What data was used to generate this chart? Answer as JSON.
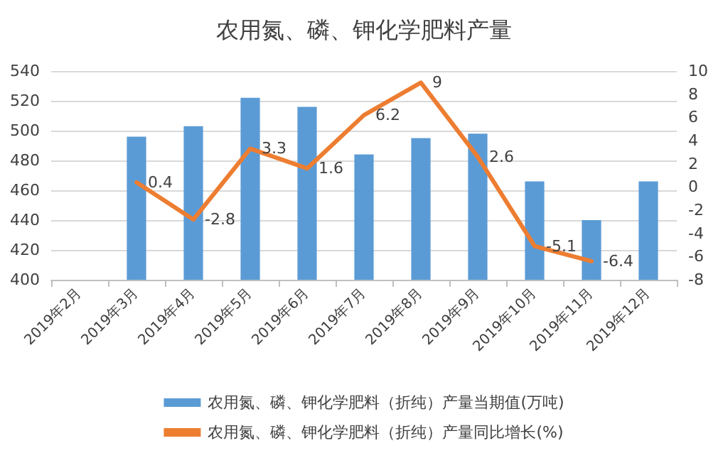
{
  "chart_data": {
    "type": "bar",
    "title": "农用氮、磷、钾化学肥料产量",
    "categories": [
      "2019年2月",
      "2019年3月",
      "2019年4月",
      "2019年5月",
      "2019年6月",
      "2019年7月",
      "2019年8月",
      "2019年9月",
      "2019年10月",
      "2019年11月",
      "2019年12月"
    ],
    "series": [
      {
        "name": "农用氮、磷、钾化学肥料（折纯）产量当期值(万吨)",
        "color": "#5b9bd5",
        "values": [
          null,
          496,
          503,
          522,
          516,
          484,
          495,
          498,
          466,
          440,
          466
        ]
      },
      {
        "type": "line",
        "axis": "y2",
        "name": "农用氮、磷、钾化学肥料（折纯）产量同比增长(%)",
        "color": "#ed7d31",
        "values": [
          null,
          0.4,
          -2.8,
          3.3,
          1.6,
          6.2,
          9,
          2.6,
          -5.1,
          -6.4,
          null
        ],
        "data_labels": true
      }
    ],
    "ylim": [
      400,
      540
    ],
    "yticks": [
      400,
      420,
      440,
      460,
      480,
      500,
      520,
      540
    ],
    "y2lim": [
      -8,
      10
    ],
    "y2ticks": [
      -8,
      -6,
      -4,
      -2,
      0,
      2,
      4,
      6,
      8,
      10
    ],
    "grid": "y",
    "legend": "bottom",
    "marker": "none",
    "line_style": "solid"
  }
}
